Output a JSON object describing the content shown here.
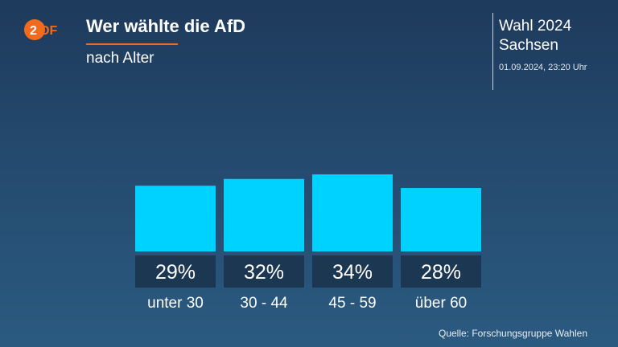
{
  "header": {
    "title": "Wer wählte die AfD",
    "subtitle": "nach Alter",
    "election": "Wahl 2024",
    "region": "Sachsen",
    "timestamp": "01.09.2024, 23:20 Uhr"
  },
  "logo": {
    "brand": "ZDF",
    "icon": "zdf-logo",
    "accent": "#f26b1d"
  },
  "colors": {
    "bar": "#00d2ff",
    "label_box": "#1b3752",
    "underline": "#f26b1d"
  },
  "chart_data": {
    "type": "bar",
    "categories": [
      "unter 30",
      "30 - 44",
      "45 - 59",
      "über 60"
    ],
    "values": [
      29,
      32,
      34,
      28
    ],
    "value_labels": [
      "29%",
      "32%",
      "34%",
      "28%"
    ],
    "unit": "%",
    "grid": false
  },
  "footer": {
    "source": "Quelle: Forschungsgruppe Wahlen"
  }
}
